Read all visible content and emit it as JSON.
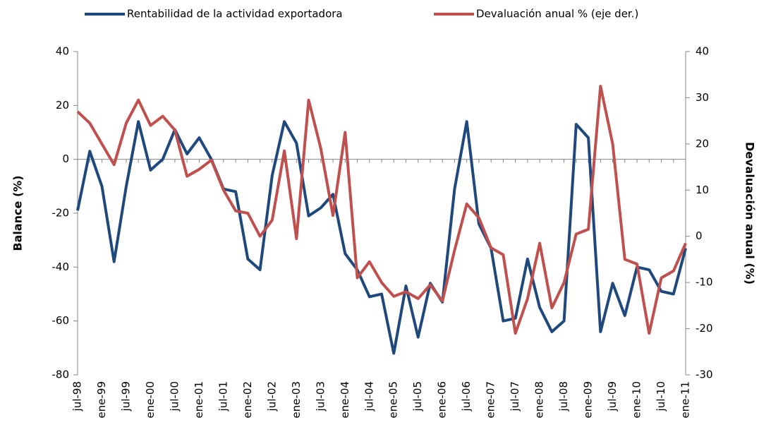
{
  "chart_data": {
    "type": "line",
    "ylabel": "Balance (%)",
    "y2label": "Devaluación anual (%)",
    "categories": [
      "jul-98",
      null,
      "ene-99",
      null,
      "jul-99",
      null,
      "ene-00",
      null,
      "jul-00",
      null,
      "ene-01",
      null,
      "jul-01",
      null,
      "ene-02",
      null,
      "jul-02",
      null,
      "ene-03",
      null,
      "jul-03",
      null,
      "ene-04",
      null,
      "jul-04",
      null,
      "ene-05",
      null,
      "jul-05",
      null,
      "ene-06",
      null,
      "jul-06",
      null,
      "ene-07",
      null,
      "jul-07",
      null,
      "ene-08",
      null,
      "jul-08",
      null,
      "ene-09",
      null,
      "jul-09",
      null,
      "ene-10",
      null,
      "jul-10",
      null,
      "ene-11"
    ],
    "series": [
      {
        "name": "Rentabilidad de la actividad exportadora",
        "color": "#1f497d",
        "axis": "y",
        "values": [
          -19,
          3,
          -10,
          -38,
          -10,
          14,
          -4,
          0,
          11,
          2,
          8,
          0,
          -11,
          -12,
          -37,
          -41,
          -6,
          14,
          6,
          -21,
          -18,
          -13,
          -35,
          -41,
          -51,
          -50,
          -72,
          -47,
          -66,
          -46,
          -53,
          -11,
          14,
          -24,
          -33,
          -60,
          -59,
          -37,
          -55,
          -64,
          -60,
          13,
          8,
          -64,
          -46,
          -58,
          -40,
          -41,
          -49,
          -50,
          -33
        ]
      },
      {
        "name": "Devaluación anual % (eje der.)",
        "color": "#c0504d",
        "axis": "y2",
        "values": [
          27,
          24.5,
          20,
          15.5,
          24.5,
          29.5,
          24,
          26,
          23,
          13,
          14.5,
          16.5,
          10,
          5.5,
          5,
          0,
          3.5,
          18.5,
          -0.5,
          29.5,
          19,
          4.5,
          22.5,
          -9,
          -5.5,
          -10,
          -13,
          -12,
          -13.5,
          -10.5,
          -14,
          -3,
          7,
          4,
          -2.5,
          -4,
          -21,
          -13.5,
          -1.5,
          -15.5,
          -10,
          0.5,
          1.5,
          32.5,
          20,
          -5,
          -6,
          -21,
          -9,
          -7.5,
          -1.5
        ]
      }
    ],
    "ylim": [
      -80,
      40
    ],
    "yticks": [
      40,
      20,
      0,
      -20,
      -40,
      -60,
      -80
    ],
    "y2lim": [
      -30,
      40
    ],
    "y2ticks": [
      40,
      30,
      20,
      10,
      0,
      -10,
      -20,
      -30
    ],
    "legend": "top"
  }
}
